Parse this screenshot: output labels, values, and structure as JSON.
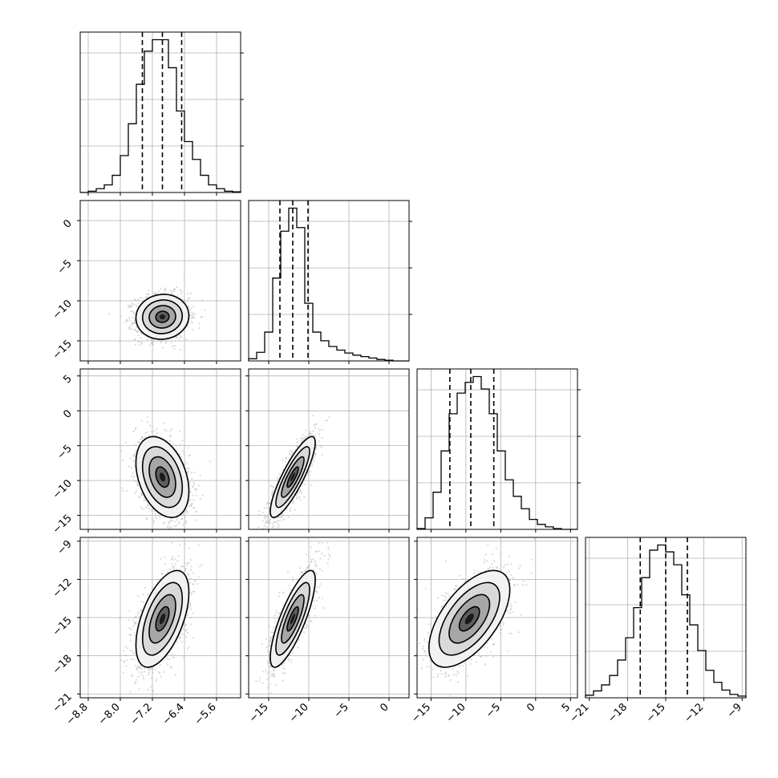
{
  "chart_data": {
    "type": "corner",
    "parameters": [
      {
        "tick_labels": [
          "−8.8",
          "−8.0",
          "−7.2",
          "−6.4",
          "−5.6"
        ],
        "tick_values": [
          -8.8,
          -8.0,
          -7.2,
          -6.4,
          -5.6
        ],
        "range": [
          -9.0,
          -5.0
        ],
        "mean": -6.95,
        "sigma": 0.33,
        "quantiles": [
          -7.45,
          -6.95,
          -6.47
        ],
        "hist_counts": [
          0,
          2,
          6,
          12,
          27,
          58,
          108,
          170,
          222,
          240,
          240,
          196,
          128,
          80,
          52,
          27,
          12,
          6,
          2,
          1
        ]
      },
      {
        "tick_labels": [
          "0",
          "−5",
          "−10",
          "−15"
        ],
        "tick_values": [
          0,
          -5,
          -10,
          -15
        ],
        "range": [
          -17.5,
          2.5
        ],
        "mean": -12,
        "sigma": 1.4,
        "quantiles": [
          -13.6,
          -12.0,
          -10.1
        ],
        "hist_counts": [
          3,
          12,
          40,
          115,
          180,
          212,
          185,
          80,
          40,
          28,
          20,
          15,
          11,
          8,
          6,
          4,
          2,
          1,
          0,
          0
        ]
      },
      {
        "tick_labels": [
          "5",
          "0",
          "−5",
          "−10",
          "−15"
        ],
        "tick_values": [
          5,
          0,
          -5,
          -10,
          -15
        ],
        "range": [
          -17,
          6
        ],
        "mean": -9.5,
        "sigma": 2.9,
        "quantiles": [
          -12.3,
          -9.3,
          -6.0
        ],
        "hist_counts": [
          1,
          14,
          45,
          95,
          140,
          165,
          178,
          185,
          170,
          140,
          95,
          60,
          40,
          25,
          12,
          6,
          3,
          1,
          0,
          0
        ]
      },
      {
        "tick_labels": [
          "−9",
          "−12",
          "−15",
          "−18",
          "−21"
        ],
        "tick_values": [
          -9,
          -12,
          -15,
          -18,
          -21
        ],
        "range": [
          -21.3,
          -8.7
        ],
        "mean": -15.1,
        "sigma": 1.9,
        "quantiles": [
          -17.0,
          -15.0,
          -13.3
        ],
        "hist_counts": [
          3,
          8,
          15,
          26,
          44,
          70,
          105,
          140,
          172,
          178,
          170,
          155,
          120,
          85,
          55,
          32,
          18,
          9,
          4,
          2
        ]
      }
    ],
    "correlations": [
      [
        0,
        1,
        0.05
      ],
      [
        0,
        2,
        -0.35
      ],
      [
        1,
        2,
        0.85
      ],
      [
        0,
        3,
        0.55
      ],
      [
        1,
        3,
        0.8
      ],
      [
        2,
        3,
        0.6
      ]
    ],
    "contour_levels": [
      "0.5σ",
      "1σ",
      "1.5σ",
      "2σ"
    ],
    "grid": true,
    "colors": {
      "points": "#bbbbbb",
      "contour": "#000000",
      "hist": "#000000"
    }
  }
}
